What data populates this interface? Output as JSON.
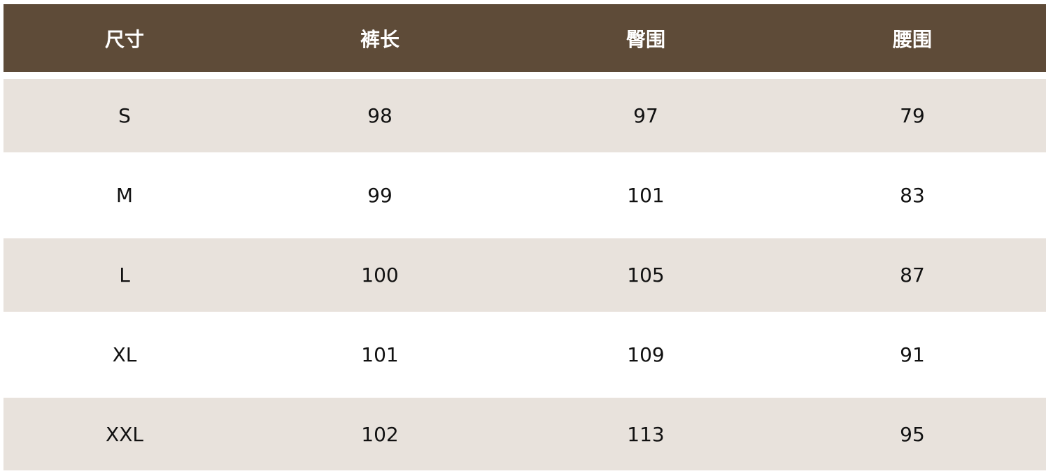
{
  "table": {
    "headers": [
      "尺寸",
      "裤长",
      "臀围",
      "腰围"
    ],
    "rows": [
      [
        "S",
        "98",
        "97",
        "79"
      ],
      [
        "M",
        "99",
        "101",
        "83"
      ],
      [
        "L",
        "100",
        "105",
        "87"
      ],
      [
        "XL",
        "101",
        "109",
        "91"
      ],
      [
        "XXL",
        "102",
        "113",
        "95"
      ]
    ]
  },
  "colors": {
    "header_bg": "#5e4b38",
    "shaded_row_bg": "#e8e2dc",
    "plain_row_bg": "#ffffff"
  }
}
